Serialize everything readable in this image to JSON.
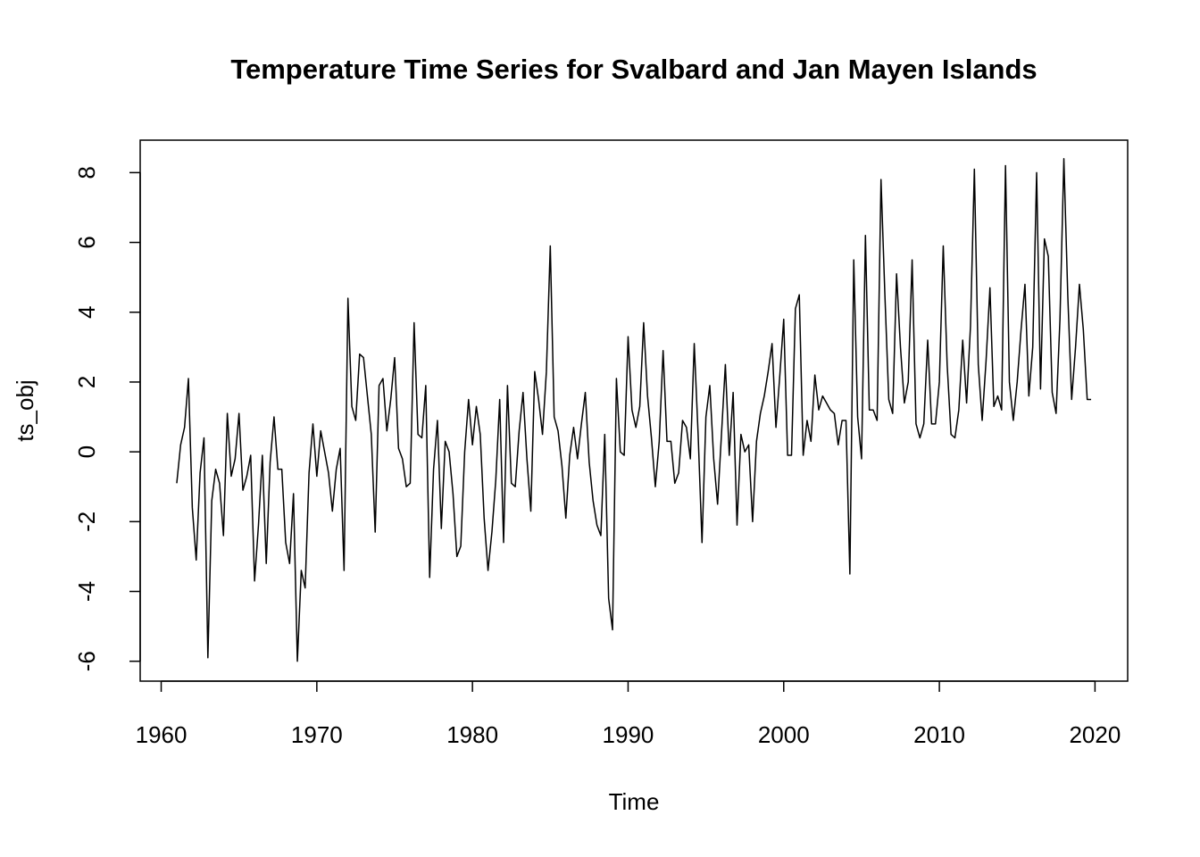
{
  "chart_data": {
    "type": "line",
    "title": "Temperature Time Series for Svalbard and Jan Mayen Islands",
    "x_label": "Time",
    "y_label": "ts_obj",
    "color": "#000000",
    "xlim": [
      1958.65,
      2022.1
    ],
    "ylim": [
      -6.57,
      8.93
    ],
    "xticks": [
      1960,
      1970,
      1980,
      1990,
      2000,
      2010,
      2020
    ],
    "yticks": [
      -6,
      -4,
      -2,
      0,
      2,
      4,
      6,
      8
    ],
    "x": [
      1961,
      1961.25,
      1961.5,
      1961.75,
      1962,
      1962.25,
      1962.5,
      1962.75,
      1963,
      1963.25,
      1963.5,
      1963.75,
      1964,
      1964.25,
      1964.5,
      1964.75,
      1965,
      1965.25,
      1965.5,
      1965.75,
      1966,
      1966.25,
      1966.5,
      1966.75,
      1967,
      1967.25,
      1967.5,
      1967.75,
      1968,
      1968.25,
      1968.5,
      1968.75,
      1969,
      1969.25,
      1969.5,
      1969.75,
      1970,
      1970.25,
      1970.5,
      1970.75,
      1971,
      1971.25,
      1971.5,
      1971.75,
      1972,
      1972.25,
      1972.5,
      1972.75,
      1973,
      1973.25,
      1973.5,
      1973.75,
      1974,
      1974.25,
      1974.5,
      1974.75,
      1975,
      1975.25,
      1975.5,
      1975.75,
      1976,
      1976.25,
      1976.5,
      1976.75,
      1977,
      1977.25,
      1977.5,
      1977.75,
      1978,
      1978.25,
      1978.5,
      1978.75,
      1979,
      1979.25,
      1979.5,
      1979.75,
      1980,
      1980.25,
      1980.5,
      1980.75,
      1981,
      1981.25,
      1981.5,
      1981.75,
      1982,
      1982.25,
      1982.5,
      1982.75,
      1983,
      1983.25,
      1983.5,
      1983.75,
      1984,
      1984.25,
      1984.5,
      1984.75,
      1985,
      1985.25,
      1985.5,
      1985.75,
      1986,
      1986.25,
      1986.5,
      1986.75,
      1987,
      1987.25,
      1987.5,
      1987.75,
      1988,
      1988.25,
      1988.5,
      1988.75,
      1989,
      1989.25,
      1989.5,
      1989.75,
      1990,
      1990.25,
      1990.5,
      1990.75,
      1991,
      1991.25,
      1991.5,
      1991.75,
      1992,
      1992.25,
      1992.5,
      1992.75,
      1993,
      1993.25,
      1993.5,
      1993.75,
      1994,
      1994.25,
      1994.5,
      1994.75,
      1995,
      1995.25,
      1995.5,
      1995.75,
      1996,
      1996.25,
      1996.5,
      1996.75,
      1997,
      1997.25,
      1997.5,
      1997.75,
      1998,
      1998.25,
      1998.5,
      1998.75,
      1999,
      1999.25,
      1999.5,
      1999.75,
      2000,
      2000.25,
      2000.5,
      2000.75,
      2001,
      2001.25,
      2001.5,
      2001.75,
      2002,
      2002.25,
      2002.5,
      2002.75,
      2003,
      2003.25,
      2003.5,
      2003.75,
      2004,
      2004.25,
      2004.5,
      2004.75,
      2005,
      2005.25,
      2005.5,
      2005.75,
      2006,
      2006.25,
      2006.5,
      2006.75,
      2007,
      2007.25,
      2007.5,
      2007.75,
      2008,
      2008.25,
      2008.5,
      2008.75,
      2009,
      2009.25,
      2009.5,
      2009.75,
      2010,
      2010.25,
      2010.5,
      2010.75,
      2011,
      2011.25,
      2011.5,
      2011.75,
      2012,
      2012.25,
      2012.5,
      2012.75,
      2013,
      2013.25,
      2013.5,
      2013.75,
      2014,
      2014.25,
      2014.5,
      2014.75,
      2015,
      2015.25,
      2015.5,
      2015.75,
      2016,
      2016.25,
      2016.5,
      2016.75,
      2017,
      2017.25,
      2017.5,
      2017.75,
      2018,
      2018.25,
      2018.5,
      2018.75,
      2019,
      2019.25,
      2019.5,
      2019.75
    ],
    "values": [
      -0.9,
      0.2,
      0.7,
      2.1,
      -1.6,
      -3.1,
      -0.6,
      0.4,
      -5.9,
      -1.4,
      -0.5,
      -0.9,
      -2.4,
      1.1,
      -0.7,
      -0.2,
      1.1,
      -1.1,
      -0.7,
      -0.1,
      -3.7,
      -2.1,
      -0.1,
      -3.2,
      -0.3,
      1.0,
      -0.5,
      -0.5,
      -2.6,
      -3.2,
      -1.2,
      -6.0,
      -3.4,
      -3.9,
      -0.6,
      0.8,
      -0.7,
      0.6,
      0.0,
      -0.6,
      -1.7,
      -0.5,
      0.1,
      -3.4,
      4.4,
      1.3,
      0.9,
      2.8,
      2.7,
      1.6,
      0.5,
      -2.3,
      1.9,
      2.1,
      0.6,
      1.5,
      2.7,
      0.1,
      -0.2,
      -1.0,
      -0.9,
      3.7,
      0.5,
      0.4,
      1.9,
      -3.6,
      -0.5,
      0.9,
      -2.2,
      0.3,
      0.0,
      -1.2,
      -3.0,
      -2.7,
      0.0,
      1.5,
      0.2,
      1.3,
      0.5,
      -1.9,
      -3.4,
      -2.3,
      -0.8,
      1.5,
      -2.6,
      1.9,
      -0.9,
      -1.0,
      0.6,
      1.7,
      -0.2,
      -1.7,
      2.3,
      1.5,
      0.5,
      2.3,
      5.9,
      1.0,
      0.6,
      -0.4,
      -1.9,
      -0.1,
      0.7,
      -0.2,
      0.8,
      1.7,
      -0.3,
      -1.4,
      -2.1,
      -2.4,
      0.5,
      -4.2,
      -5.1,
      2.1,
      0.0,
      -0.1,
      3.3,
      1.2,
      0.7,
      1.3,
      3.7,
      1.6,
      0.4,
      -1.0,
      0.3,
      2.9,
      0.3,
      0.3,
      -0.9,
      -0.6,
      0.9,
      0.7,
      -0.2,
      3.1,
      0.5,
      -2.6,
      1.0,
      1.9,
      -0.2,
      -1.5,
      0.5,
      2.5,
      -0.1,
      1.7,
      -2.1,
      0.5,
      0.0,
      0.2,
      -2.0,
      0.3,
      1.1,
      1.6,
      2.3,
      3.1,
      0.7,
      2.2,
      3.8,
      -0.1,
      -0.1,
      4.1,
      4.5,
      -0.1,
      0.9,
      0.3,
      2.2,
      1.2,
      1.6,
      1.4,
      1.2,
      1.1,
      0.2,
      0.9,
      0.9,
      -3.5,
      5.5,
      1.0,
      -0.2,
      6.2,
      1.2,
      1.2,
      0.9,
      7.8,
      4.5,
      1.5,
      1.1,
      5.1,
      3.0,
      1.4,
      2.0,
      5.5,
      0.8,
      0.4,
      0.8,
      3.2,
      0.8,
      0.8,
      2.0,
      5.9,
      2.5,
      0.5,
      0.4,
      1.2,
      3.2,
      1.4,
      3.6,
      8.1,
      2.5,
      0.9,
      2.6,
      4.7,
      1.3,
      1.6,
      1.2,
      8.2,
      2.0,
      0.9,
      2.0,
      3.5,
      4.8,
      1.6,
      3.0,
      8.0,
      1.8,
      6.1,
      5.6,
      1.7,
      1.1,
      3.8,
      8.4,
      4.5,
      1.5,
      3.0,
      4.8,
      3.5,
      1.5,
      1.5
    ]
  }
}
